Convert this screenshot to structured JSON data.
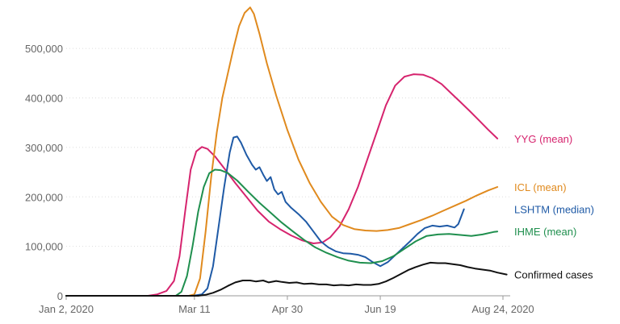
{
  "chart_data": {
    "type": "line",
    "title": "",
    "xlabel": "",
    "ylabel": "",
    "x_type": "date",
    "x_range": [
      "2020-01-02",
      "2020-08-24"
    ],
    "ylim": [
      0,
      585000
    ],
    "grid": true,
    "legend": "right, inline at line ends",
    "x_ticks": [
      {
        "date": "2020-01-02",
        "label": "Jan 2, 2020"
      },
      {
        "date": "2020-03-11",
        "label": "Mar 11"
      },
      {
        "date": "2020-04-30",
        "label": "Apr 30"
      },
      {
        "date": "2020-06-19",
        "label": "Jun 19"
      },
      {
        "date": "2020-08-24",
        "label": "Aug 24, 2020"
      }
    ],
    "y_ticks": [
      {
        "value": 0,
        "label": "0"
      },
      {
        "value": 100000,
        "label": "100,000"
      },
      {
        "value": 200000,
        "label": "200,000"
      },
      {
        "value": 300000,
        "label": "300,000"
      },
      {
        "value": 400000,
        "label": "400,000"
      },
      {
        "value": 500000,
        "label": "500,000"
      }
    ],
    "series": [
      {
        "name": "YYG (mean)",
        "color": "#d6246e",
        "points": [
          [
            "2020-01-02",
            0
          ],
          [
            "2020-02-15",
            0
          ],
          [
            "2020-02-20",
            3000
          ],
          [
            "2020-02-25",
            10000
          ],
          [
            "2020-02-29",
            30000
          ],
          [
            "2020-03-03",
            80000
          ],
          [
            "2020-03-06",
            170000
          ],
          [
            "2020-03-09",
            255000
          ],
          [
            "2020-03-12",
            292000
          ],
          [
            "2020-03-15",
            301000
          ],
          [
            "2020-03-18",
            297000
          ],
          [
            "2020-03-22",
            282000
          ],
          [
            "2020-03-27",
            258000
          ],
          [
            "2020-04-02",
            228000
          ],
          [
            "2020-04-08",
            200000
          ],
          [
            "2020-04-14",
            172000
          ],
          [
            "2020-04-20",
            150000
          ],
          [
            "2020-04-26",
            135000
          ],
          [
            "2020-05-02",
            122000
          ],
          [
            "2020-05-08",
            112000
          ],
          [
            "2020-05-14",
            106000
          ],
          [
            "2020-05-19",
            108000
          ],
          [
            "2020-05-23",
            118000
          ],
          [
            "2020-05-28",
            140000
          ],
          [
            "2020-06-02",
            175000
          ],
          [
            "2020-06-07",
            220000
          ],
          [
            "2020-06-12",
            275000
          ],
          [
            "2020-06-17",
            330000
          ],
          [
            "2020-06-22",
            385000
          ],
          [
            "2020-06-27",
            425000
          ],
          [
            "2020-07-02",
            443000
          ],
          [
            "2020-07-07",
            448000
          ],
          [
            "2020-07-12",
            447000
          ],
          [
            "2020-07-17",
            440000
          ],
          [
            "2020-07-22",
            428000
          ],
          [
            "2020-07-27",
            410000
          ],
          [
            "2020-08-01",
            392000
          ],
          [
            "2020-08-06",
            374000
          ],
          [
            "2020-08-11",
            355000
          ],
          [
            "2020-08-16",
            336000
          ],
          [
            "2020-08-21",
            318000
          ]
        ]
      },
      {
        "name": "ICL (mean)",
        "color": "#e08a1e",
        "points": [
          [
            "2020-01-02",
            0
          ],
          [
            "2020-03-08",
            0
          ],
          [
            "2020-03-11",
            3000
          ],
          [
            "2020-03-14",
            35000
          ],
          [
            "2020-03-17",
            130000
          ],
          [
            "2020-03-20",
            240000
          ],
          [
            "2020-03-23",
            330000
          ],
          [
            "2020-03-26",
            400000
          ],
          [
            "2020-03-29",
            450000
          ],
          [
            "2020-04-01",
            500000
          ],
          [
            "2020-04-04",
            545000
          ],
          [
            "2020-04-07",
            572000
          ],
          [
            "2020-04-10",
            583000
          ],
          [
            "2020-04-12",
            570000
          ],
          [
            "2020-04-15",
            530000
          ],
          [
            "2020-04-19",
            470000
          ],
          [
            "2020-04-24",
            405000
          ],
          [
            "2020-04-30",
            335000
          ],
          [
            "2020-05-06",
            275000
          ],
          [
            "2020-05-12",
            228000
          ],
          [
            "2020-05-18",
            190000
          ],
          [
            "2020-05-24",
            160000
          ],
          [
            "2020-05-30",
            143000
          ],
          [
            "2020-06-05",
            135000
          ],
          [
            "2020-06-11",
            132000
          ],
          [
            "2020-06-17",
            131000
          ],
          [
            "2020-06-23",
            133000
          ],
          [
            "2020-06-29",
            137000
          ],
          [
            "2020-07-05",
            145000
          ],
          [
            "2020-07-11",
            153000
          ],
          [
            "2020-07-17",
            162000
          ],
          [
            "2020-07-23",
            172000
          ],
          [
            "2020-07-29",
            182000
          ],
          [
            "2020-08-04",
            192000
          ],
          [
            "2020-08-10",
            203000
          ],
          [
            "2020-08-16",
            213000
          ],
          [
            "2020-08-21",
            220000
          ]
        ]
      },
      {
        "name": "LSHTM (median)",
        "color": "#1f5aa6",
        "points": [
          [
            "2020-01-02",
            0
          ],
          [
            "2020-03-10",
            0
          ],
          [
            "2020-03-15",
            3000
          ],
          [
            "2020-03-18",
            15000
          ],
          [
            "2020-03-21",
            60000
          ],
          [
            "2020-03-24",
            140000
          ],
          [
            "2020-03-27",
            220000
          ],
          [
            "2020-03-30",
            290000
          ],
          [
            "2020-04-01",
            320000
          ],
          [
            "2020-04-03",
            322000
          ],
          [
            "2020-04-05",
            310000
          ],
          [
            "2020-04-08",
            285000
          ],
          [
            "2020-04-11",
            265000
          ],
          [
            "2020-04-13",
            255000
          ],
          [
            "2020-04-15",
            260000
          ],
          [
            "2020-04-17",
            245000
          ],
          [
            "2020-04-19",
            232000
          ],
          [
            "2020-04-21",
            240000
          ],
          [
            "2020-04-23",
            215000
          ],
          [
            "2020-04-25",
            205000
          ],
          [
            "2020-04-27",
            210000
          ],
          [
            "2020-04-29",
            190000
          ],
          [
            "2020-05-02",
            178000
          ],
          [
            "2020-05-06",
            165000
          ],
          [
            "2020-05-10",
            150000
          ],
          [
            "2020-05-14",
            130000
          ],
          [
            "2020-05-18",
            110000
          ],
          [
            "2020-05-22",
            98000
          ],
          [
            "2020-05-26",
            90000
          ],
          [
            "2020-05-30",
            86000
          ],
          [
            "2020-06-03",
            85000
          ],
          [
            "2020-06-07",
            83000
          ],
          [
            "2020-06-11",
            78000
          ],
          [
            "2020-06-15",
            68000
          ],
          [
            "2020-06-19",
            60000
          ],
          [
            "2020-06-23",
            68000
          ],
          [
            "2020-06-27",
            82000
          ],
          [
            "2020-07-01",
            96000
          ],
          [
            "2020-07-05",
            110000
          ],
          [
            "2020-07-09",
            125000
          ],
          [
            "2020-07-13",
            137000
          ],
          [
            "2020-07-17",
            142000
          ],
          [
            "2020-07-21",
            140000
          ],
          [
            "2020-07-25",
            142000
          ],
          [
            "2020-07-29",
            138000
          ],
          [
            "2020-07-31",
            145000
          ],
          [
            "2020-08-03",
            175000
          ]
        ]
      },
      {
        "name": "IHME (mean)",
        "color": "#1f8f4e",
        "points": [
          [
            "2020-01-02",
            0
          ],
          [
            "2020-03-01",
            0
          ],
          [
            "2020-03-04",
            8000
          ],
          [
            "2020-03-07",
            40000
          ],
          [
            "2020-03-10",
            100000
          ],
          [
            "2020-03-13",
            170000
          ],
          [
            "2020-03-16",
            220000
          ],
          [
            "2020-03-19",
            248000
          ],
          [
            "2020-03-22",
            255000
          ],
          [
            "2020-03-25",
            254000
          ],
          [
            "2020-03-29",
            248000
          ],
          [
            "2020-04-03",
            233000
          ],
          [
            "2020-04-09",
            210000
          ],
          [
            "2020-04-15",
            188000
          ],
          [
            "2020-04-21",
            168000
          ],
          [
            "2020-04-27",
            148000
          ],
          [
            "2020-05-03",
            130000
          ],
          [
            "2020-05-09",
            113000
          ],
          [
            "2020-05-15",
            98000
          ],
          [
            "2020-05-21",
            87000
          ],
          [
            "2020-05-27",
            78000
          ],
          [
            "2020-06-02",
            71000
          ],
          [
            "2020-06-08",
            67000
          ],
          [
            "2020-06-14",
            66000
          ],
          [
            "2020-06-20",
            70000
          ],
          [
            "2020-06-26",
            80000
          ],
          [
            "2020-07-02",
            95000
          ],
          [
            "2020-07-08",
            110000
          ],
          [
            "2020-07-14",
            121000
          ],
          [
            "2020-07-20",
            124000
          ],
          [
            "2020-07-26",
            125000
          ],
          [
            "2020-08-01",
            123000
          ],
          [
            "2020-08-07",
            121000
          ],
          [
            "2020-08-13",
            124000
          ],
          [
            "2020-08-19",
            129000
          ],
          [
            "2020-08-21",
            130000
          ]
        ]
      },
      {
        "name": "Confirmed cases",
        "color": "#111111",
        "points": [
          [
            "2020-01-02",
            0
          ],
          [
            "2020-03-13",
            0
          ],
          [
            "2020-03-17",
            2000
          ],
          [
            "2020-03-21",
            6000
          ],
          [
            "2020-03-25",
            12000
          ],
          [
            "2020-03-29",
            20000
          ],
          [
            "2020-04-02",
            27000
          ],
          [
            "2020-04-06",
            31000
          ],
          [
            "2020-04-10",
            31000
          ],
          [
            "2020-04-13",
            29000
          ],
          [
            "2020-04-17",
            31000
          ],
          [
            "2020-04-20",
            27000
          ],
          [
            "2020-04-24",
            30000
          ],
          [
            "2020-04-27",
            28000
          ],
          [
            "2020-05-01",
            26000
          ],
          [
            "2020-05-05",
            27000
          ],
          [
            "2020-05-09",
            24000
          ],
          [
            "2020-05-13",
            25000
          ],
          [
            "2020-05-17",
            23000
          ],
          [
            "2020-05-21",
            23000
          ],
          [
            "2020-05-25",
            21000
          ],
          [
            "2020-05-29",
            22000
          ],
          [
            "2020-06-02",
            21000
          ],
          [
            "2020-06-06",
            23000
          ],
          [
            "2020-06-10",
            22000
          ],
          [
            "2020-06-14",
            22000
          ],
          [
            "2020-06-18",
            24000
          ],
          [
            "2020-06-22",
            29000
          ],
          [
            "2020-06-26",
            36000
          ],
          [
            "2020-06-30",
            44000
          ],
          [
            "2020-07-04",
            52000
          ],
          [
            "2020-07-08",
            58000
          ],
          [
            "2020-07-12",
            63000
          ],
          [
            "2020-07-16",
            67000
          ],
          [
            "2020-07-20",
            66000
          ],
          [
            "2020-07-24",
            66000
          ],
          [
            "2020-07-28",
            64000
          ],
          [
            "2020-08-01",
            62000
          ],
          [
            "2020-08-05",
            58000
          ],
          [
            "2020-08-09",
            55000
          ],
          [
            "2020-08-13",
            53000
          ],
          [
            "2020-08-17",
            51000
          ],
          [
            "2020-08-21",
            47000
          ],
          [
            "2020-08-26",
            43000
          ]
        ]
      }
    ]
  }
}
